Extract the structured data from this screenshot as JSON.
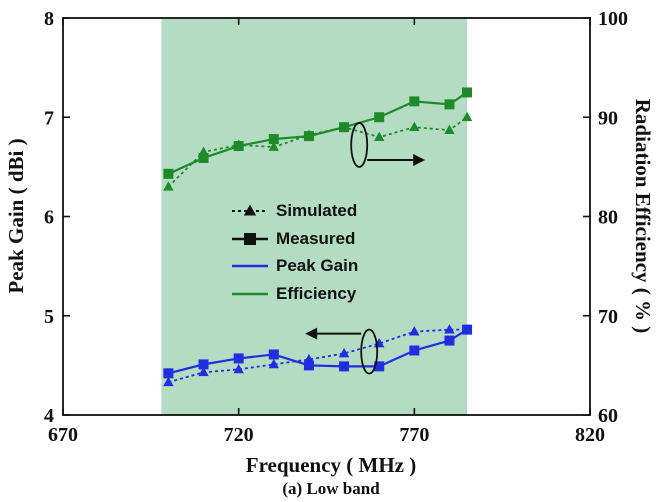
{
  "caption": "(a) Low band",
  "colors": {
    "band_fill": "#b4dcc2",
    "gain": "#1f2fe0",
    "efficiency": "#1e8a2a",
    "axis": "#111111"
  },
  "chart_data": {
    "type": "line",
    "title": "",
    "xlabel": "Frequency ( MHz )",
    "ylabel": "Peak Gain ( dBi )",
    "y2label": "Radiation Efficiency ( % )",
    "xlim": [
      670,
      820
    ],
    "ylim": [
      4,
      8
    ],
    "y2lim": [
      60,
      100
    ],
    "xticks": [
      "670",
      "720",
      "770",
      "820"
    ],
    "yticks": [
      "4",
      "5",
      "6",
      "7",
      "8"
    ],
    "y2ticks": [
      "60",
      "70",
      "80",
      "90",
      "100"
    ],
    "shaded_band": [
      698,
      785
    ],
    "grid": false,
    "legend": {
      "placement": "center",
      "entries": [
        "Simulated",
        "Measured",
        "Peak Gain",
        "Efficiency"
      ]
    },
    "series": [
      {
        "quantity": "efficiency",
        "kind": "simulated",
        "axis": "right",
        "marker": "triangle",
        "dash": "dotted",
        "x": [
          700,
          710,
          720,
          730,
          740,
          750,
          760,
          770,
          780,
          785
        ],
        "values": [
          83.0,
          86.5,
          87.2,
          87.0,
          88.2,
          89.0,
          88.0,
          89.0,
          88.7,
          90.0
        ]
      },
      {
        "quantity": "efficiency",
        "kind": "measured",
        "axis": "right",
        "marker": "square",
        "dash": "solid",
        "x": [
          700,
          710,
          720,
          730,
          740,
          750,
          760,
          770,
          780,
          785
        ],
        "values": [
          84.3,
          85.9,
          87.1,
          87.8,
          88.1,
          89.0,
          90.0,
          91.6,
          91.3,
          92.5
        ]
      },
      {
        "quantity": "peak_gain",
        "kind": "simulated",
        "axis": "left",
        "marker": "triangle",
        "dash": "dotted",
        "x": [
          700,
          710,
          720,
          730,
          740,
          750,
          760,
          770,
          780,
          785
        ],
        "values": [
          4.33,
          4.43,
          4.46,
          4.51,
          4.56,
          4.62,
          4.72,
          4.84,
          4.86,
          4.86
        ]
      },
      {
        "quantity": "peak_gain",
        "kind": "measured",
        "axis": "left",
        "marker": "square",
        "dash": "solid",
        "x": [
          700,
          710,
          720,
          730,
          740,
          750,
          760,
          770,
          780,
          785
        ],
        "values": [
          4.42,
          4.51,
          4.57,
          4.61,
          4.5,
          4.49,
          4.49,
          4.65,
          4.75,
          4.86
        ]
      }
    ],
    "annotations": [
      {
        "type": "arrow",
        "direction": "right",
        "target_axis": "right",
        "at_x": 760,
        "at_y": 6.6
      },
      {
        "type": "arrow",
        "direction": "left",
        "target_axis": "left",
        "at_x": 760,
        "at_y": 4.78
      }
    ]
  }
}
